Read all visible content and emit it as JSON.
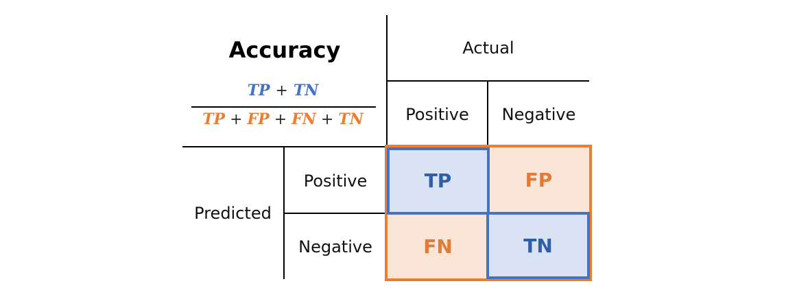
{
  "title": "Accuracy",
  "formula": {
    "numerator": [
      "TP",
      "+",
      "TN"
    ],
    "denominator": [
      "TP",
      "+",
      "FP",
      "+",
      "FN",
      "+",
      "TN"
    ]
  },
  "actual_label": "Actual",
  "predicted_label": "Predicted",
  "columns": [
    "Positive",
    "Negative"
  ],
  "rows": [
    "Positive",
    "Negative"
  ],
  "cells": {
    "tp": "TP",
    "fp": "FP",
    "fn": "FN",
    "tn": "TN"
  },
  "colors": {
    "blue": "#4472c4",
    "orange": "#ed7d31",
    "blue_fill": "#dae3f3",
    "orange_fill": "#fbe5d6"
  }
}
